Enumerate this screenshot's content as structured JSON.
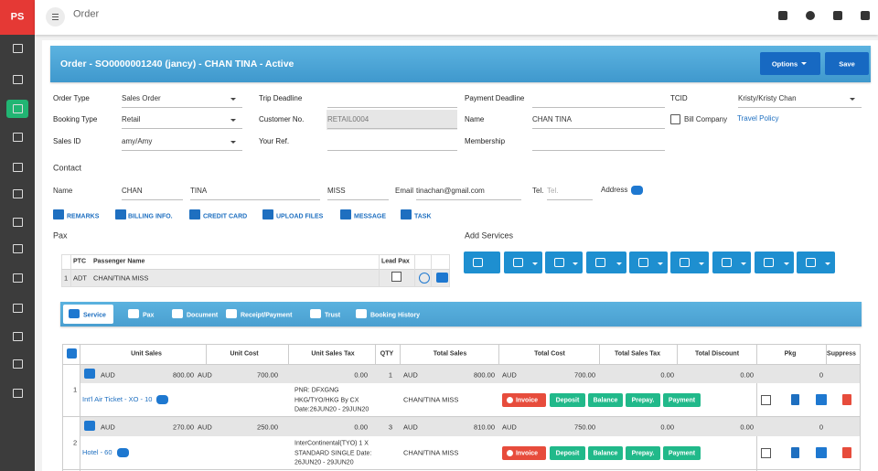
{
  "app": {
    "logo": "PS",
    "page": "Order"
  },
  "header": {
    "title": "Order - SO0000001240 (jancy) - CHAN TINA - Active",
    "options": "Options",
    "save": "Save"
  },
  "form": [
    [
      {
        "label": "Order Type",
        "value": "Sales Order"
      },
      {
        "label": "Trip Deadline"
      },
      {
        "label": "Payment Deadline"
      },
      {
        "label": "TCID",
        "value": "Kristy/Kristy Chan"
      }
    ],
    [
      {
        "label": "Booking Type",
        "value": "Retail"
      },
      {
        "label": "Customer No.",
        "value": "RETAIL0004"
      },
      {
        "label": "Name",
        "value": "CHAN TINA"
      },
      {
        "checkbox": "Bill Company",
        "link": "Travel Policy"
      }
    ],
    [
      {
        "label": "Sales ID",
        "value": "amy/Amy"
      },
      {
        "label": "Your Ref."
      },
      {
        "label": "Membership"
      }
    ]
  ],
  "contact": {
    "heading": "Contact",
    "name_label": "Name",
    "first": "CHAN",
    "last": "TINA",
    "title": "MISS",
    "email_label": "Email",
    "email": "tinachan@gmail.com",
    "tel_label": "Tel.",
    "tel_placeholder": "Tel.",
    "address_label": "Address"
  },
  "actions": [
    "REMARKS",
    "BILLING INFO.",
    "CREDIT CARD",
    "UPLOAD FILES",
    "MESSAGE",
    "TASK"
  ],
  "pax": {
    "heading": "Pax",
    "columns": [
      "PTC",
      "Passenger Name",
      "Lead Pax"
    ],
    "rows": [
      [
        "1",
        "ADT",
        "CHAN/TINA MISS"
      ]
    ]
  },
  "add_services": {
    "heading": "Add Services"
  },
  "tabs": [
    "Service",
    "Pax",
    "Document",
    "Receipt/Payment",
    "Trust",
    "Booking History"
  ],
  "services": {
    "columns": [
      "Unit Sales",
      "Unit Cost",
      "Unit Sales Tax",
      "QTY",
      "Total Sales",
      "Total Cost",
      "Total Sales Tax",
      "Total Discount",
      "Pkg",
      "Suppress"
    ],
    "buttons": [
      "Invoice",
      "Deposit",
      "Balance",
      "Prepay.",
      "Payment"
    ],
    "items": [
      {
        "summary": [
          "AUD",
          "800.00",
          "AUD",
          "700.00",
          "0.00",
          "1",
          "AUD",
          "800.00",
          "AUD",
          "700.00",
          "0.00",
          "0.00",
          "0"
        ],
        "no": "1",
        "name": "Int'l Air Ticket - XO - 10",
        "details": [
          "PNR: DFXGNG",
          "HKG/TYO/HKG By CX",
          "Date:26JUN20 - 29JUN20"
        ],
        "passenger": "CHAN/TINA MISS"
      },
      {
        "summary": [
          "AUD",
          "270.00",
          "AUD",
          "250.00",
          "0.00",
          "3",
          "AUD",
          "810.00",
          "AUD",
          "750.00",
          "0.00",
          "0.00",
          "0"
        ],
        "no": "2",
        "name": "Hotel - 60",
        "details": [
          "InterContinental(TYO) 1 X",
          "STANDARD SINGLE Date:",
          "26JUN20 - 29JUN20"
        ],
        "passenger": "CHAN/TINA MISS"
      }
    ]
  }
}
